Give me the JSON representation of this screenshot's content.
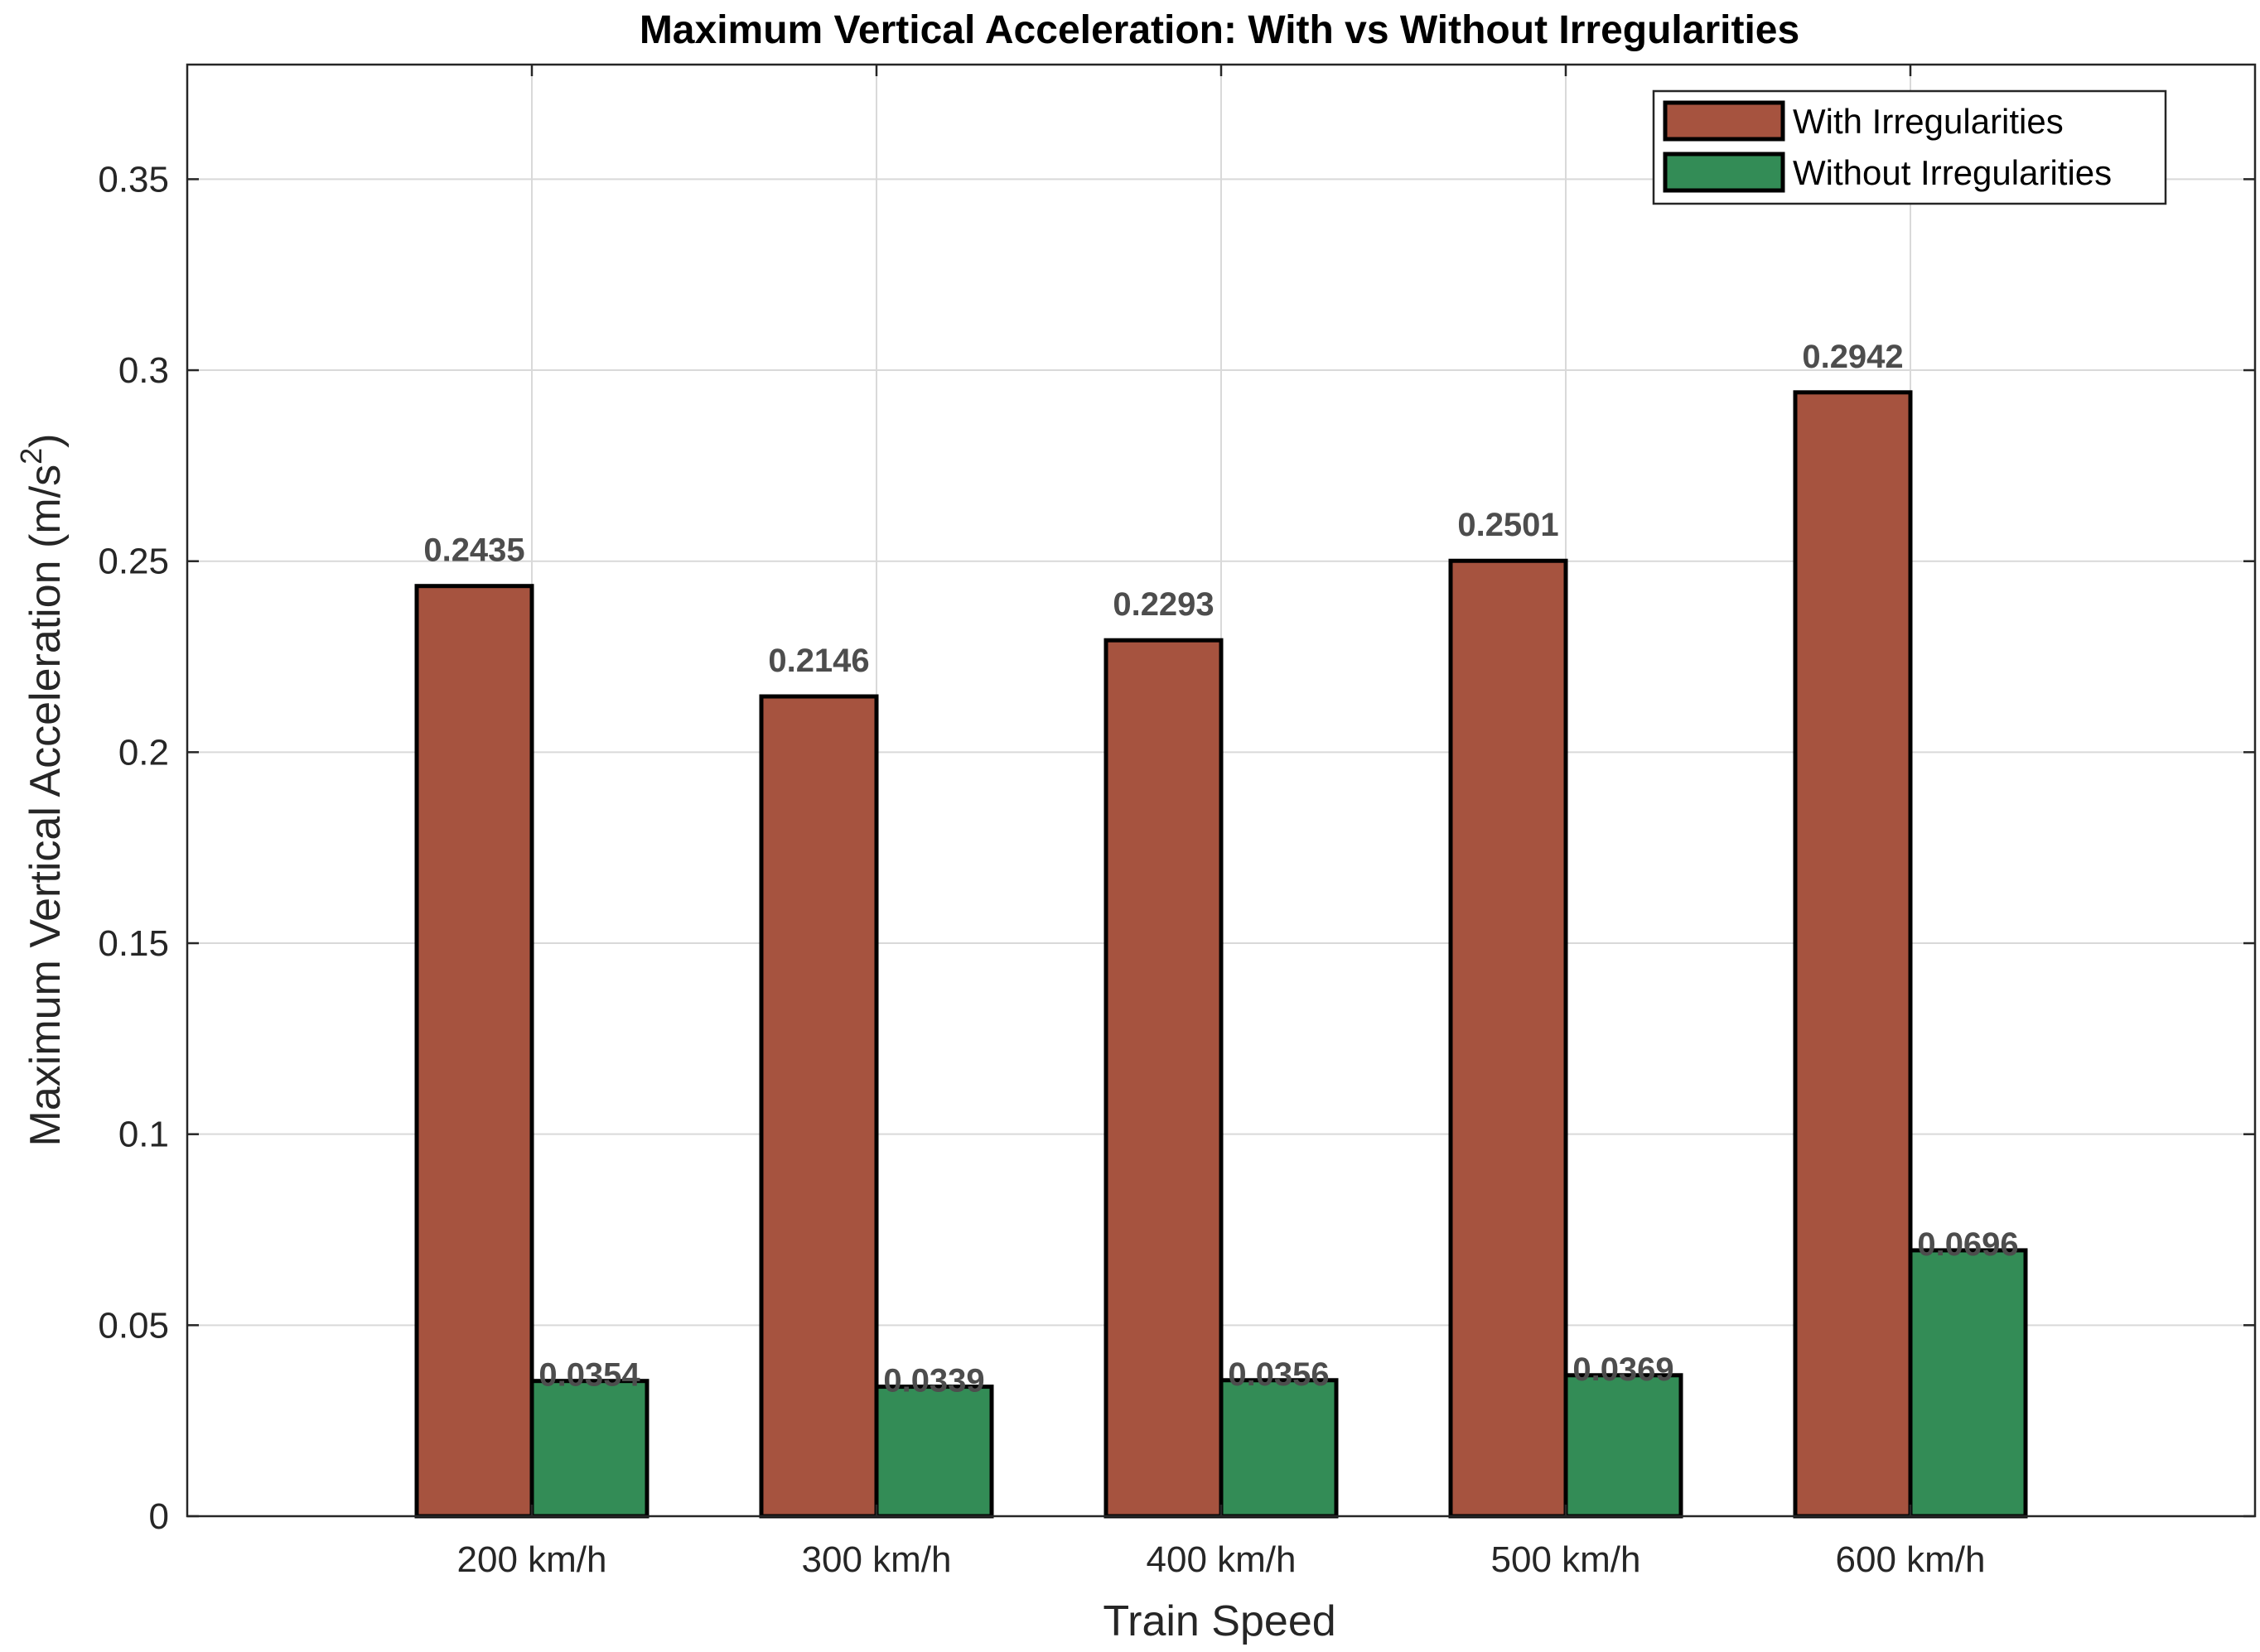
{
  "chart_data": {
    "type": "bar",
    "title": "Maximum Vertical Acceleration: With vs Without Irregularities",
    "xlabel": "Train Speed",
    "ylabel": "Maximum Vertical Acceleration (m/s",
    "ylabel_superscript": "2",
    "ylabel_suffix": ")",
    "categories": [
      "200 km/h",
      "300 km/h",
      "400 km/h",
      "500 km/h",
      "600 km/h"
    ],
    "series": [
      {
        "name": "With Irregularities",
        "color": "#a6533f",
        "values": [
          0.2435,
          0.2146,
          0.2293,
          0.2501,
          0.2942
        ],
        "labels": [
          "0.2435",
          "0.2146",
          "0.2293",
          "0.2501",
          "0.2942"
        ]
      },
      {
        "name": "Without Irregularities",
        "color": "#338c56",
        "values": [
          0.0354,
          0.0339,
          0.0356,
          0.0369,
          0.0696
        ],
        "labels": [
          "0.0354",
          "0.0339",
          "0.0356",
          "0.0369",
          "0.0696"
        ]
      }
    ],
    "ylim": [
      0,
      0.38
    ],
    "xlim": [
      0,
      6
    ],
    "yticks": [
      0,
      0.05,
      0.1,
      0.15,
      0.2,
      0.25,
      0.3,
      0.35
    ],
    "ytick_labels": [
      "0",
      "0.05",
      "0.1",
      "0.15",
      "0.2",
      "0.25",
      "0.3",
      "0.35"
    ],
    "grid": true,
    "legend_position": "top-right"
  }
}
